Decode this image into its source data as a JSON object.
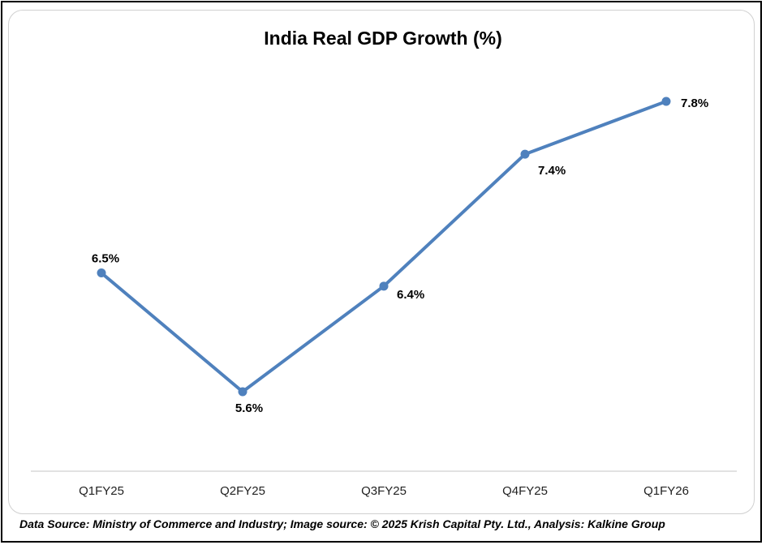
{
  "chart_data": {
    "type": "line",
    "title": "India Real GDP Growth (%)",
    "categories": [
      "Q1FY25",
      "Q2FY25",
      "Q3FY25",
      "Q4FY25",
      "Q1FY26"
    ],
    "series": [
      {
        "values": [
          6.5,
          5.6,
          6.4,
          7.4,
          7.8
        ],
        "labels": [
          "6.5%",
          "5.6%",
          "6.4%",
          "7.4%",
          "7.8%"
        ]
      }
    ],
    "xlabel": "",
    "ylabel": "",
    "grid": false,
    "line_color": "#4f81bd"
  },
  "footer": "Data Source: Ministry of Commerce and Industry; Image source: © 2025 Krish Capital Pty. Ltd., Analysis: Kalkine Group"
}
